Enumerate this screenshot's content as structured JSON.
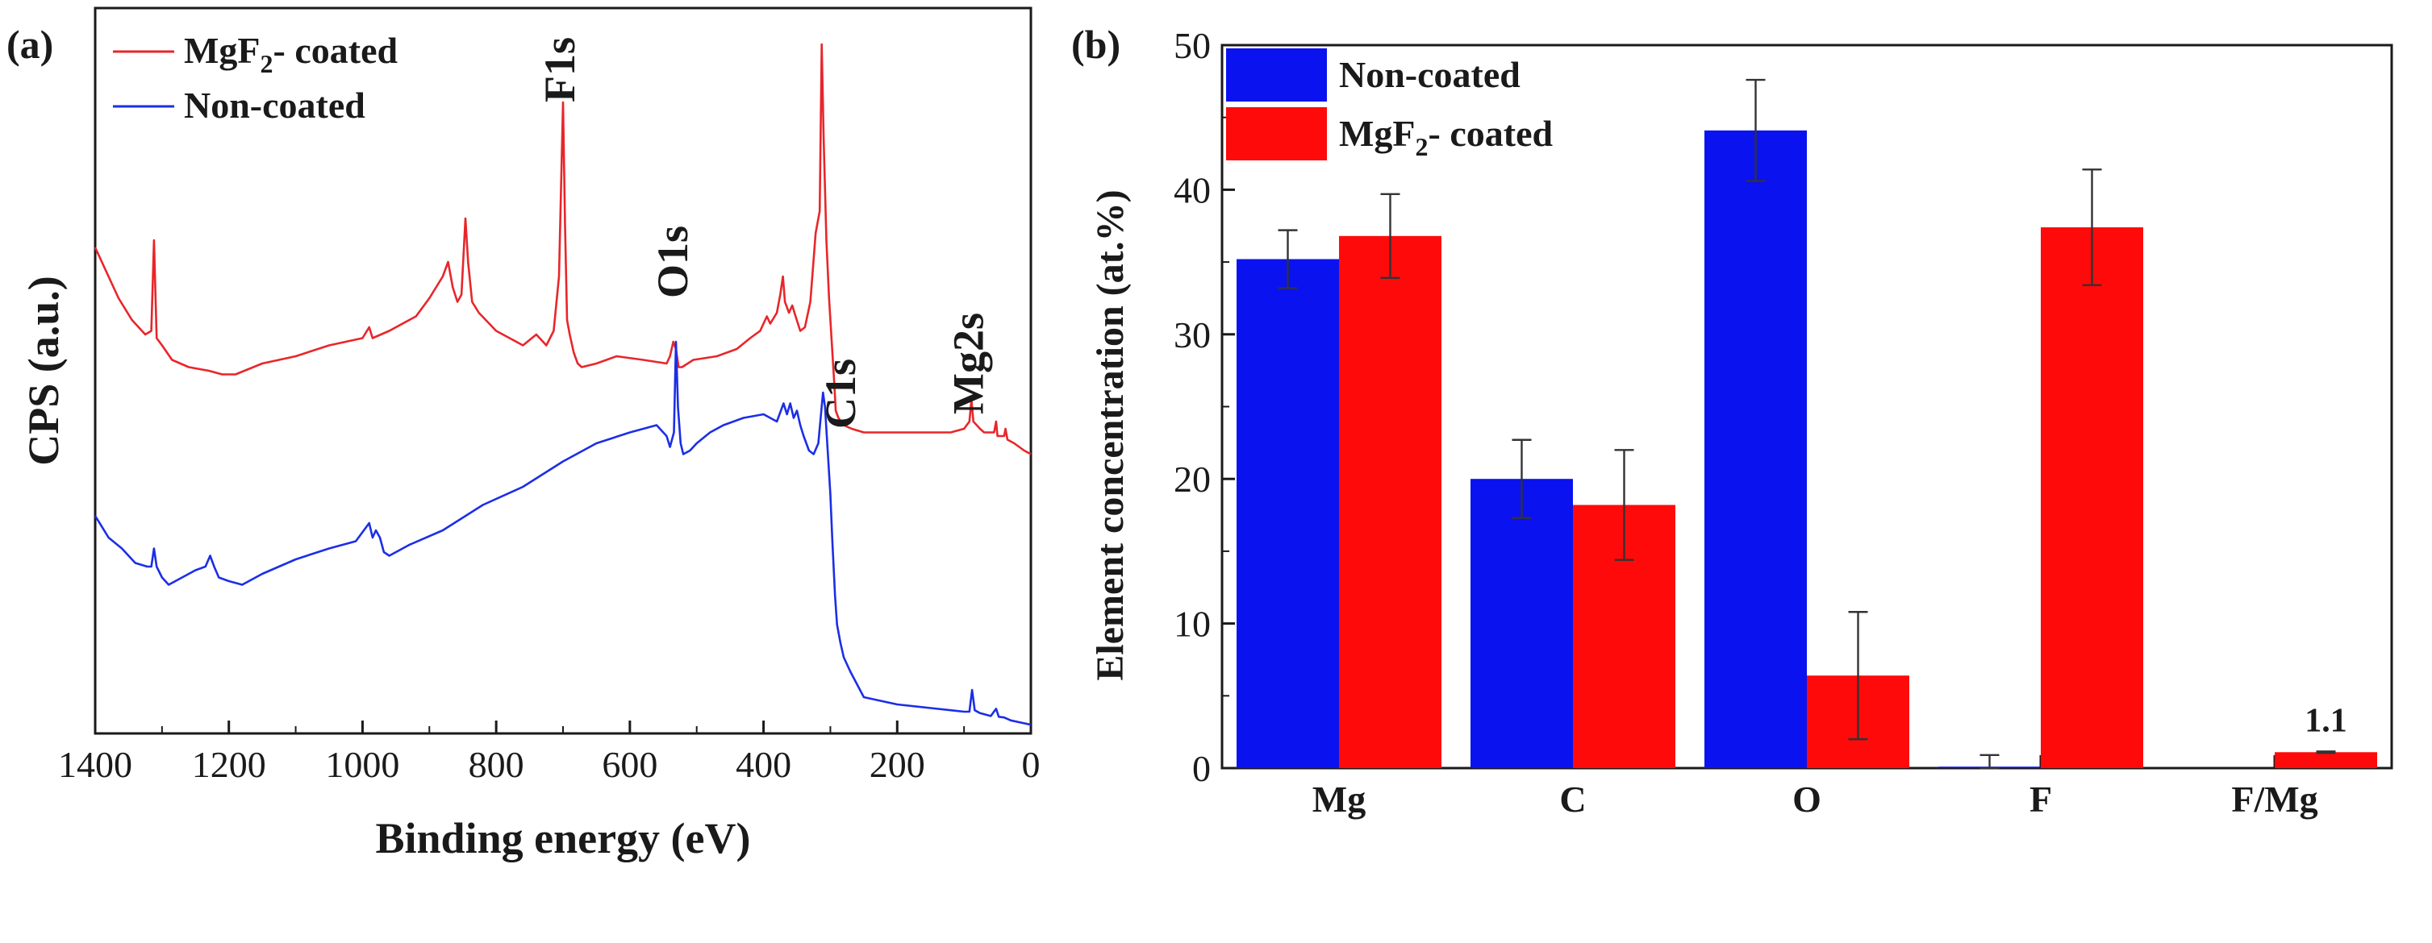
{
  "chart_data": [
    {
      "type": "line",
      "panel_label": "(a)",
      "title": "",
      "xlabel": "Binding energy (eV)",
      "ylabel": "CPS (a.u.)",
      "xlim": [
        1400,
        0
      ],
      "x_reversed": true,
      "ylim": [
        0,
        100
      ],
      "y_ticks_shown": false,
      "grid": false,
      "x_ticks": [
        1400,
        1200,
        1000,
        800,
        600,
        400,
        200,
        0
      ],
      "legend": {
        "position": "top-left",
        "entries": [
          {
            "series": "MgF2-coated",
            "prefix": "MgF",
            "subscript": "2",
            "suffix": "- coated",
            "color": "#e8262a"
          },
          {
            "series": "Non-coated",
            "text": "Non-coated",
            "color": "#1c2ee6"
          }
        ]
      },
      "annotations": [
        {
          "text": "F1s",
          "x": 700,
          "y": 87
        },
        {
          "text": "O1s",
          "x": 531,
          "y": 60
        },
        {
          "text": "C1s",
          "x": 280,
          "y": 42
        },
        {
          "text": "Mg2s",
          "x": 89,
          "y": 44
        }
      ],
      "series": [
        {
          "name": "MgF2-coated",
          "color": "#e8262a",
          "x": [
            1400,
            1385,
            1365,
            1345,
            1325,
            1316,
            1312,
            1308,
            1300,
            1285,
            1260,
            1230,
            1210,
            1190,
            1150,
            1100,
            1050,
            1000,
            990,
            985,
            960,
            920,
            900,
            880,
            872,
            865,
            858,
            852,
            846,
            842,
            836,
            826,
            800,
            760,
            740,
            725,
            714,
            706,
            700,
            697,
            694,
            690,
            684,
            678,
            672,
            650,
            620,
            580,
            545,
            540,
            535,
            531,
            527,
            522,
            505,
            470,
            440,
            420,
            405,
            395,
            390,
            380,
            375,
            371,
            368,
            362,
            357,
            352,
            345,
            338,
            330,
            322,
            316,
            313,
            310,
            306,
            302,
            298,
            294,
            292,
            288,
            280,
            268,
            250,
            200,
            160,
            120,
            100,
            92,
            89,
            86,
            76,
            70,
            55,
            52,
            50,
            40,
            38,
            35,
            25,
            10,
            0
          ],
          "y": [
            67,
            64,
            60,
            57,
            55,
            55.5,
            68,
            54.5,
            53.5,
            51.5,
            50.5,
            50,
            49.5,
            49.5,
            51,
            52,
            53.5,
            54.5,
            56,
            54.5,
            55.5,
            57.5,
            60,
            63,
            65,
            61.5,
            59.5,
            60.5,
            71,
            65,
            59.5,
            58,
            55.5,
            53.5,
            55,
            53.5,
            55.5,
            63,
            87,
            70,
            57,
            55,
            52.5,
            51,
            50.5,
            51,
            52,
            51.5,
            51,
            52,
            54,
            53,
            50.5,
            50.5,
            51.5,
            52,
            53,
            54.5,
            55.5,
            57.5,
            56.5,
            58,
            60.5,
            63,
            59.5,
            58,
            59,
            57.5,
            55.5,
            56,
            59.5,
            69,
            72,
            95,
            82,
            68,
            60,
            54,
            48,
            44.5,
            43.5,
            42.5,
            42,
            41.5,
            41.5,
            41.5,
            41.5,
            42,
            43,
            46,
            43,
            42,
            41.5,
            41.5,
            43,
            41,
            41,
            42,
            40.5,
            40,
            39,
            38.5
          ]
        },
        {
          "name": "Non-coated",
          "color": "#1c2ee6",
          "x": [
            1400,
            1380,
            1360,
            1340,
            1322,
            1316,
            1312,
            1308,
            1300,
            1290,
            1270,
            1250,
            1235,
            1228,
            1222,
            1215,
            1200,
            1180,
            1150,
            1100,
            1050,
            1010,
            990,
            985,
            980,
            974,
            968,
            960,
            930,
            880,
            820,
            760,
            700,
            650,
            600,
            560,
            545,
            540,
            534,
            531,
            528,
            524,
            520,
            510,
            500,
            480,
            460,
            430,
            400,
            380,
            370,
            365,
            360,
            355,
            350,
            345,
            340,
            332,
            325,
            318,
            314,
            311,
            308,
            304,
            300,
            297,
            293,
            290,
            285,
            280,
            270,
            250,
            200,
            150,
            120,
            100,
            92,
            88,
            84,
            76,
            60,
            52,
            48,
            40,
            30,
            15,
            0
          ],
          "y": [
            30,
            27,
            25.5,
            23.5,
            23,
            23,
            25.5,
            23,
            21.5,
            20.5,
            21.5,
            22.5,
            23,
            24.5,
            23,
            21.5,
            21,
            20.5,
            22,
            24,
            25.5,
            26.5,
            29,
            27,
            28,
            27,
            25,
            24.5,
            26,
            28,
            31.5,
            34,
            37.5,
            40,
            41.5,
            42.5,
            41,
            39.5,
            41.5,
            54,
            45,
            40,
            38.5,
            39,
            40,
            41.5,
            42.5,
            43.5,
            44,
            43,
            45.5,
            44,
            45.5,
            43.5,
            44.5,
            42.5,
            41,
            39,
            38.5,
            40,
            44,
            47,
            45,
            39,
            33,
            26.5,
            19,
            15,
            12.5,
            10.5,
            8.5,
            5,
            4,
            3.5,
            3.2,
            3,
            3,
            6,
            3.2,
            2.8,
            2.4,
            3.4,
            2.3,
            2.2,
            1.8,
            1.5,
            1.2
          ]
        }
      ]
    },
    {
      "type": "bar",
      "panel_label": "(b)",
      "title": "",
      "xlabel": "",
      "ylabel": "Element concentration (at.%)",
      "ylim": [
        0,
        50
      ],
      "y_ticks": [
        0,
        10,
        20,
        30,
        40,
        50
      ],
      "grid": false,
      "categories": [
        "Mg",
        "C",
        "O",
        "F",
        "F/Mg"
      ],
      "legend": {
        "position": "top-left",
        "entries": [
          {
            "series": "Non-coated",
            "text": "Non-coated",
            "color": "#0a12f0"
          },
          {
            "series": "MgF2-coated",
            "prefix": "MgF",
            "subscript": "2",
            "suffix": "- coated",
            "color": "#ff0a0a"
          }
        ]
      },
      "series": [
        {
          "name": "Non-coated",
          "color": "#0a12f0",
          "values": [
            35.2,
            20.0,
            44.1,
            0.1,
            0
          ],
          "errors": [
            2.0,
            2.7,
            3.5,
            0.8,
            0
          ]
        },
        {
          "name": "MgF2-coated",
          "color": "#ff0a0a",
          "values": [
            36.8,
            18.2,
            6.4,
            37.4,
            1.1
          ],
          "errors": [
            2.9,
            3.8,
            4.4,
            4.0,
            0.05
          ]
        }
      ],
      "data_labels": [
        {
          "series": "MgF2-coated",
          "category": "F/Mg",
          "text": "1.1"
        }
      ]
    }
  ]
}
